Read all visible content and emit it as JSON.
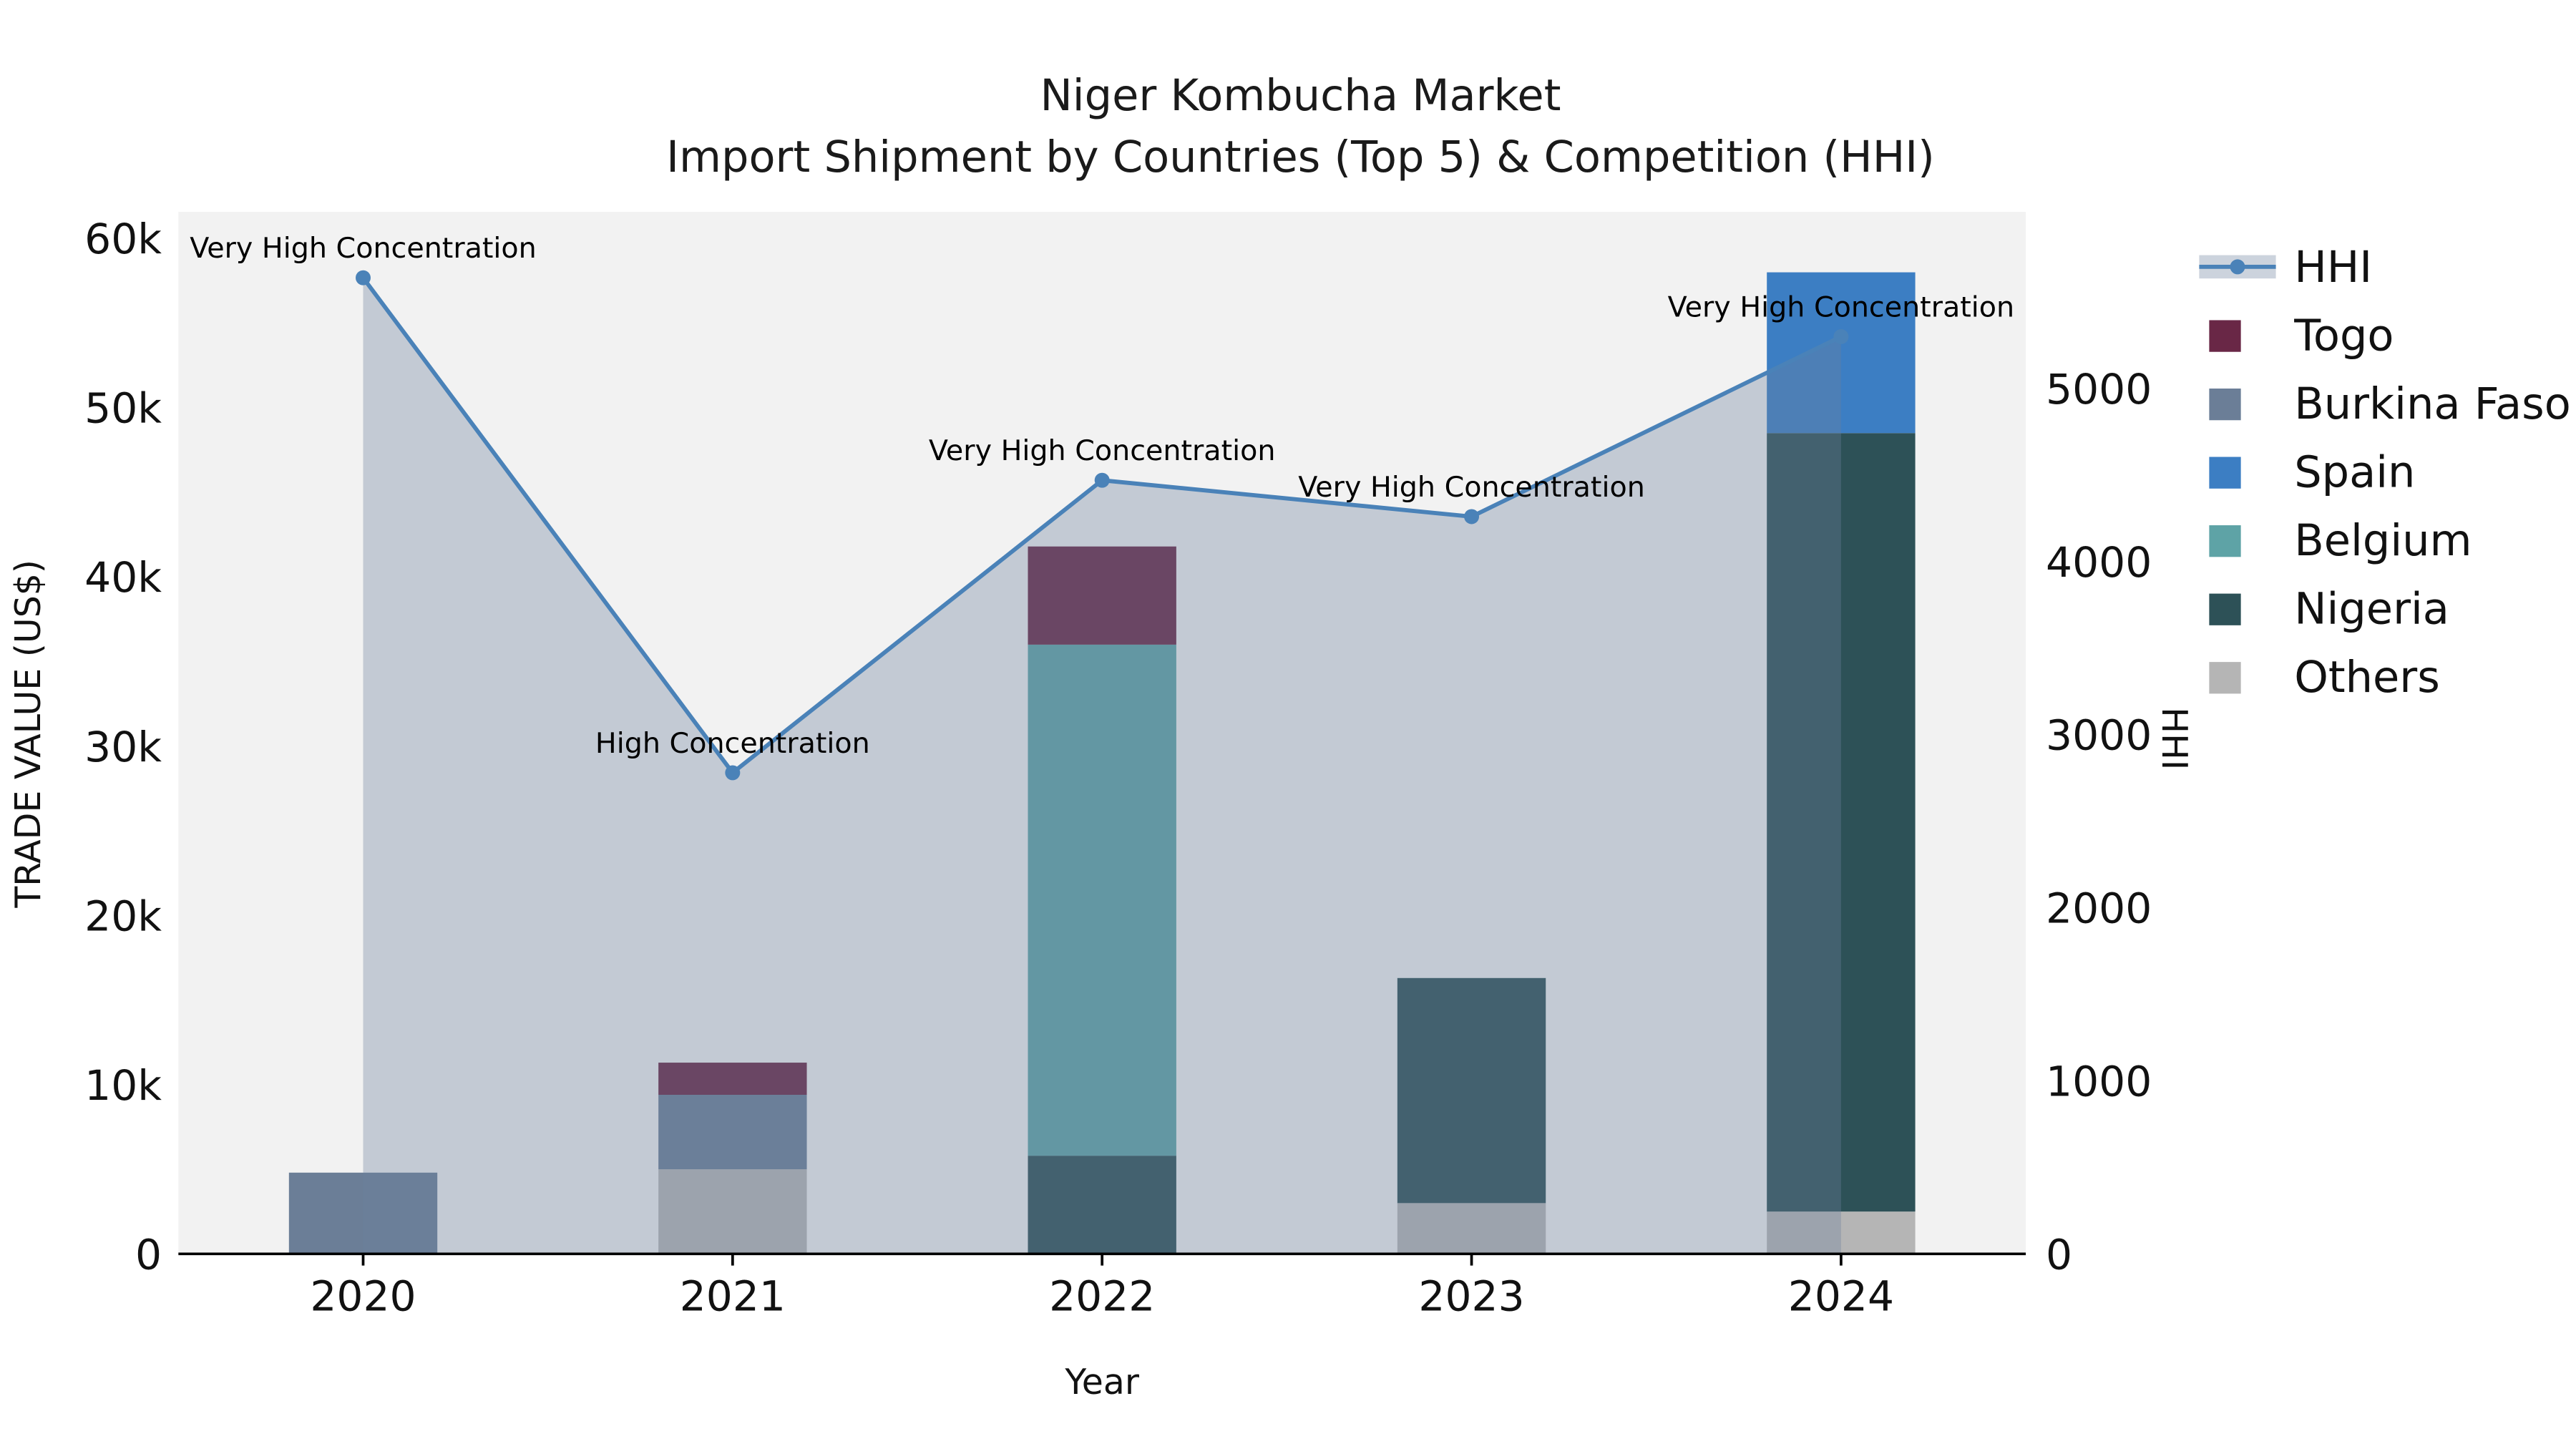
{
  "title": {
    "line1": "Niger Kombucha Market",
    "line2": "Import Shipment by Countries (Top 5) & Competition (HHI)"
  },
  "chart_data": {
    "type": "combo-stacked-bar-line",
    "x_categories": [
      "2020",
      "2021",
      "2022",
      "2023",
      "2024"
    ],
    "xlabel": "Year",
    "plot_bg": "#f2f2f2",
    "left_axis": {
      "label": "TRADE VALUE (US$)",
      "ticks": [
        0,
        10000,
        20000,
        30000,
        40000,
        50000,
        60000
      ],
      "tick_labels": [
        "0",
        "10k",
        "20k",
        "30k",
        "40k",
        "50k",
        "60k"
      ],
      "range": [
        0,
        60000
      ]
    },
    "right_axis": {
      "label": "HHI",
      "ticks": [
        0,
        1000,
        2000,
        3000,
        4000,
        5000
      ],
      "tick_labels": [
        "0",
        "1000",
        "2000",
        "3000",
        "4000",
        "5000"
      ],
      "range": [
        0,
        5860
      ]
    },
    "bar_series": [
      {
        "name": "Others",
        "color": "#b5b5b5",
        "values": [
          0,
          5000,
          0,
          3000,
          2500
        ]
      },
      {
        "name": "Nigeria",
        "color": "#2d5157",
        "values": [
          0,
          0,
          5800,
          13300,
          46000
        ]
      },
      {
        "name": "Belgium",
        "color": "#5ea3a6",
        "values": [
          0,
          0,
          30200,
          0,
          0
        ]
      },
      {
        "name": "Spain",
        "color": "#3c7ec3",
        "values": [
          0,
          0,
          0,
          0,
          9500
        ]
      },
      {
        "name": "Burkina Faso",
        "color": "#6b7e97",
        "values": [
          4800,
          4400,
          0,
          0,
          0
        ]
      },
      {
        "name": "Togo",
        "color": "#692746",
        "values": [
          0,
          1900,
          5800,
          0,
          0
        ]
      }
    ],
    "line_series": {
      "name": "HHI",
      "color": "#4a82b8",
      "fill_color": "rgba(108,130,158,0.35)",
      "values": [
        5640,
        2780,
        4470,
        4260,
        5300
      ],
      "annotations": [
        "Very High Concentration",
        "High Concentration",
        "Very High Concentration",
        "Very High Concentration",
        "Very High Concentration"
      ]
    },
    "legend": [
      {
        "label": "HHI",
        "swatch": "line",
        "color": "#4a82b8"
      },
      {
        "label": "Togo",
        "swatch": "square",
        "color": "#692746"
      },
      {
        "label": "Burkina Faso",
        "swatch": "square",
        "color": "#6b7e97"
      },
      {
        "label": "Spain",
        "swatch": "square",
        "color": "#3c7ec3"
      },
      {
        "label": "Belgium",
        "swatch": "square",
        "color": "#5ea3a6"
      },
      {
        "label": "Nigeria",
        "swatch": "square",
        "color": "#2d5157"
      },
      {
        "label": "Others",
        "swatch": "square",
        "color": "#b5b5b5"
      }
    ]
  }
}
